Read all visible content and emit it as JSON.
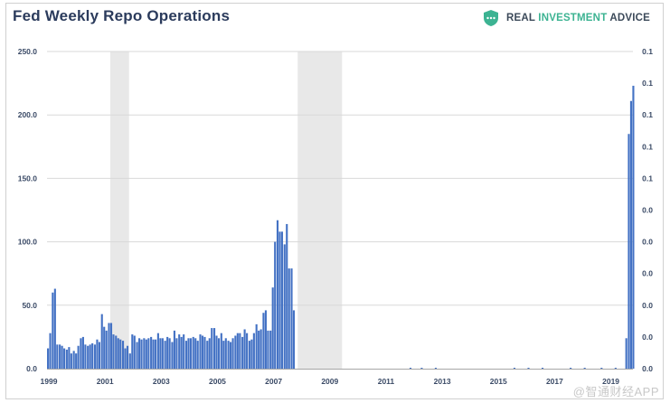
{
  "header": {
    "title": "Fed Weekly Repo Operations",
    "brand_part1": "REAL ",
    "brand_part2": "INVESTMENT",
    "brand_part3": " ADVICE",
    "brand_icon": "shield-chat-icon"
  },
  "watermark": "@智通财经APP",
  "colors": {
    "bar": "#4472c4",
    "recession_band": "#e8e8e8",
    "gridline": "#d9d9d9",
    "title": "#2b3b5c",
    "brand_dark": "#3c4a5a",
    "brand_green": "#3cb392"
  },
  "chart_data": {
    "type": "bar",
    "title": "Fed Weekly Repo Operations",
    "xlabel": "",
    "ylabel": "",
    "ylim": [
      0,
      250
    ],
    "xlim": [
      1999.0,
      2019.85
    ],
    "grid": true,
    "legend": "none",
    "y_ticks": [
      "0.0",
      "50.0",
      "100.0",
      "150.0",
      "200.0",
      "250.0"
    ],
    "y2_ticks": [
      "0.0",
      "0.0",
      "0.0",
      "0.0",
      "0.0",
      "0.0",
      "0.1",
      "0.1",
      "0.1",
      "0.1",
      "0.1"
    ],
    "x_ticks": [
      "1999",
      "2001",
      "2003",
      "2005",
      "2007",
      "2009",
      "2011",
      "2013",
      "2015",
      "2017",
      "2019"
    ],
    "recession_bands": [
      [
        2001.25,
        2001.92
      ],
      [
        2007.92,
        2009.5
      ]
    ],
    "series": [
      {
        "x": [
          1999.0,
          1999.08,
          1999.17,
          1999.25,
          1999.33,
          1999.42,
          1999.5,
          1999.58,
          1999.67,
          1999.75,
          1999.83,
          1999.92,
          2000.0,
          2000.08,
          2000.17,
          2000.25,
          2000.33,
          2000.42,
          2000.5,
          2000.58,
          2000.67,
          2000.75,
          2000.83,
          2000.92,
          2001.0,
          2001.08,
          2001.17,
          2001.25,
          2001.33,
          2001.42,
          2001.5,
          2001.58,
          2001.67,
          2001.75,
          2001.83,
          2001.92,
          2002.0,
          2002.08,
          2002.17,
          2002.25,
          2002.33,
          2002.42,
          2002.5,
          2002.58,
          2002.67,
          2002.75,
          2002.83,
          2002.92,
          2003.0,
          2003.08,
          2003.17,
          2003.25,
          2003.33,
          2003.42,
          2003.5,
          2003.58,
          2003.67,
          2003.75,
          2003.83,
          2003.92,
          2004.0,
          2004.08,
          2004.17,
          2004.25,
          2004.33,
          2004.42,
          2004.5,
          2004.58,
          2004.67,
          2004.75,
          2004.83,
          2004.92,
          2005.0,
          2005.08,
          2005.17,
          2005.25,
          2005.33,
          2005.42,
          2005.5,
          2005.58,
          2005.67,
          2005.75,
          2005.83,
          2005.92,
          2006.0,
          2006.08,
          2006.17,
          2006.25,
          2006.33,
          2006.42,
          2006.5,
          2006.58,
          2006.67,
          2006.75,
          2006.83,
          2006.92,
          2007.0,
          2007.08,
          2007.17,
          2007.25,
          2007.33,
          2007.42,
          2007.5,
          2007.58,
          2007.67,
          2007.75,
          2007.83,
          2007.92,
          2008.0,
          2008.08,
          2008.17,
          2008.25,
          2008.33,
          2008.42,
          2008.5,
          2008.58,
          2008.67,
          2008.75,
          2008.83,
          2008.92,
          2009.0,
          2011.9,
          2012.3,
          2012.8,
          2015.6,
          2016.1,
          2016.6,
          2017.6,
          2018.1,
          2018.7,
          2019.2,
          2019.58,
          2019.67,
          2019.75,
          2019.83
        ],
        "values": [
          16,
          28,
          60,
          63,
          19,
          19,
          18,
          16,
          15,
          17,
          12,
          14,
          12,
          18,
          24,
          25,
          19,
          18,
          19,
          20,
          19,
          23,
          21,
          43,
          33,
          30,
          36,
          36,
          27,
          26,
          24,
          23,
          22,
          16,
          18,
          12,
          27,
          26,
          21,
          24,
          23,
          24,
          23,
          24,
          25,
          23,
          23,
          28,
          24,
          24,
          22,
          25,
          24,
          21,
          30,
          24,
          27,
          25,
          27,
          22,
          24,
          24,
          25,
          24,
          22,
          27,
          26,
          25,
          22,
          24,
          32,
          32,
          26,
          24,
          28,
          22,
          24,
          22,
          21,
          24,
          26,
          28,
          28,
          25,
          31,
          28,
          22,
          23,
          28,
          35,
          30,
          31,
          44,
          46,
          30,
          30,
          64,
          100,
          117,
          108,
          108,
          98,
          114,
          79,
          79,
          46,
          0,
          0,
          0,
          0,
          0,
          0,
          0,
          0,
          0,
          0,
          0,
          0,
          0,
          0,
          0,
          0.4,
          0.5,
          0.7,
          0.3,
          0.4,
          0.3,
          0.4,
          0.4,
          0.5,
          0.5,
          24,
          185,
          211,
          223
        ]
      }
    ]
  }
}
